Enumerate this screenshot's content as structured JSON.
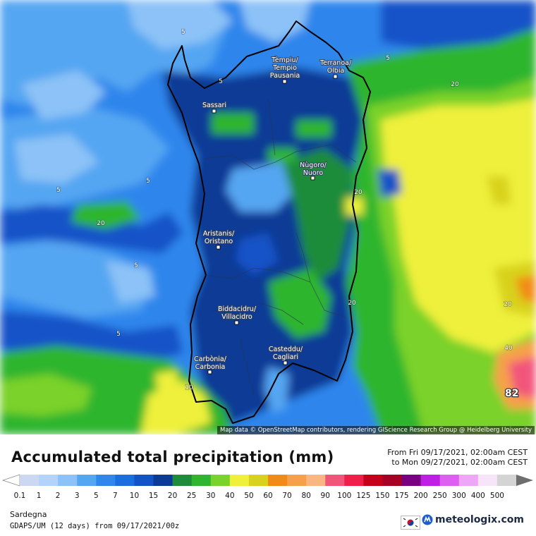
{
  "title": "Accumulated total precipitation (mm)",
  "period": {
    "from": "From Fri 09/17/2021, 02:00am CEST",
    "to": "to Mon 09/27/2021, 02:00am CEST"
  },
  "attribution": "Map data © OpenStreetMap contributors, rendering GIScience Research Group @ Heidelberg University",
  "region": "Sardegna",
  "model": "GDAPS/UM (12 days) from 09/17/2021/00z",
  "logo": "meteologix.com",
  "max_value": "82",
  "cities": [
    {
      "name": "Tempio-Pausania",
      "line1": "Tèmpiu/",
      "line2": "Tempio",
      "line3": "Pausania"
    },
    {
      "name": "Olbia",
      "line1": "Terranoa/",
      "line2": "Olbia"
    },
    {
      "name": "Sassari",
      "line1": "Sassari"
    },
    {
      "name": "Nuoro",
      "line1": "Nùgoro/",
      "line2": "Nuoro"
    },
    {
      "name": "Oristano",
      "line1": "Aristanis/",
      "line2": "Oristano"
    },
    {
      "name": "Villacidro",
      "line1": "Biddacidru/",
      "line2": "Villacidro"
    },
    {
      "name": "Cagliari",
      "line1": "Casteddu/",
      "line2": "Cagliari"
    },
    {
      "name": "Carbonia",
      "line1": "Carbònia/",
      "line2": "Carbonia"
    }
  ],
  "contour_labels": [
    "5",
    "5",
    "5",
    "5",
    "5",
    "5",
    "5",
    "20",
    "20",
    "20",
    "20",
    "20",
    "40",
    "10"
  ],
  "legend": {
    "ticks": [
      "0.1",
      "1",
      "2",
      "3",
      "5",
      "7",
      "10",
      "15",
      "20",
      "25",
      "30",
      "40",
      "50",
      "60",
      "70",
      "80",
      "90",
      "100",
      "125",
      "150",
      "175",
      "200",
      "250",
      "300",
      "400",
      "500"
    ],
    "colors": [
      "#ccd7f2",
      "#b3d3fa",
      "#8cc2f7",
      "#55a6f2",
      "#2f86ec",
      "#1c6ee0",
      "#1452c8",
      "#0d3a96",
      "#1e8c3a",
      "#2fb52f",
      "#7ad22a",
      "#eef03a",
      "#d8d21e",
      "#f28a18",
      "#f7a04a",
      "#f8b682",
      "#f2557a",
      "#f01f4a",
      "#c4001a",
      "#a80025",
      "#7a0082",
      "#c01ee6",
      "#de5ef2",
      "#eea6f7",
      "#f7e4fb",
      "#d4d4d4"
    ]
  }
}
